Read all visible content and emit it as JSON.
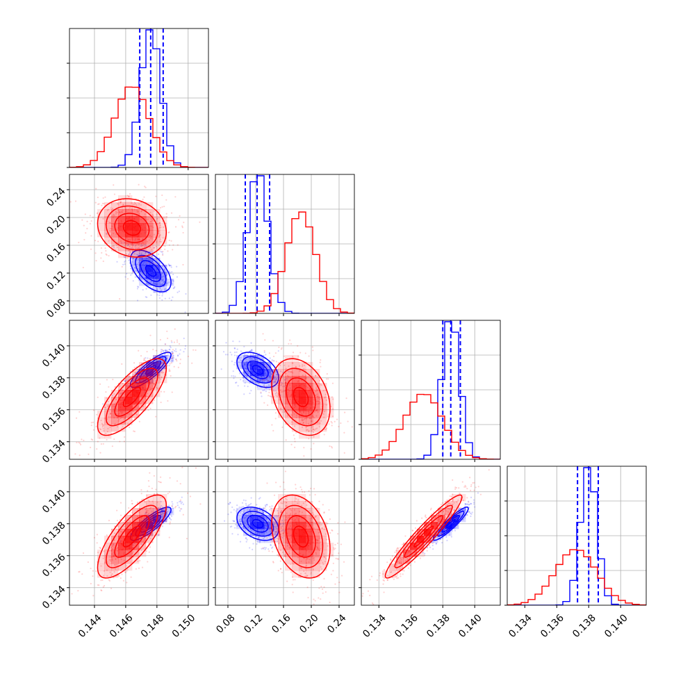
{
  "chart_data": {
    "type": "corner",
    "colors": {
      "blue": "#0000ff",
      "red": "#ff0000",
      "grid": "#b0b0b0"
    },
    "grid": true,
    "parameters": [
      {
        "range": [
          0.1424,
          0.1513
        ],
        "ticks": [
          "0.144",
          "0.146",
          "0.148",
          "0.150"
        ]
      },
      {
        "range": [
          0.062,
          0.262
        ],
        "ticks": [
          "0.08",
          "0.12",
          "0.16",
          "0.20",
          "0.24"
        ]
      },
      {
        "range": [
          0.1329,
          0.1416
        ],
        "ticks": [
          "0.134",
          "0.136",
          "0.138",
          "0.140"
        ]
      },
      {
        "range": [
          0.1329,
          0.1416
        ],
        "ticks": [
          "0.134",
          "0.136",
          "0.138",
          "0.140"
        ]
      }
    ],
    "series": [
      {
        "color": "blue",
        "mean": [
          0.1476,
          0.123,
          0.1385,
          0.138
        ],
        "sd": [
          0.00065,
          0.015,
          0.00055,
          0.00052
        ],
        "corr": [
          [
            0,
            1,
            -0.55
          ],
          [
            0,
            2,
            0.85
          ],
          [
            0,
            3,
            0.85
          ],
          [
            1,
            2,
            -0.45
          ],
          [
            1,
            3,
            -0.35
          ],
          [
            2,
            3,
            0.92
          ]
        ],
        "quantiles": [
          [
            0.1469,
            0.1476,
            0.1484
          ],
          [
            0.105,
            0.122,
            0.14
          ],
          [
            0.138,
            0.1385,
            0.1391
          ],
          [
            0.1373,
            0.138,
            0.1386
          ]
        ]
      },
      {
        "color": "red",
        "mean": [
          0.1464,
          0.185,
          0.1368,
          0.1372
        ],
        "sd": [
          0.0011,
          0.021,
          0.0012,
          0.0013
        ],
        "corr": [
          [
            0,
            1,
            -0.15
          ],
          [
            0,
            2,
            0.75
          ],
          [
            0,
            3,
            0.75
          ],
          [
            1,
            2,
            -0.3
          ],
          [
            1,
            3,
            -0.3
          ],
          [
            2,
            3,
            0.95
          ]
        ],
        "quantiles": null
      }
    ]
  }
}
